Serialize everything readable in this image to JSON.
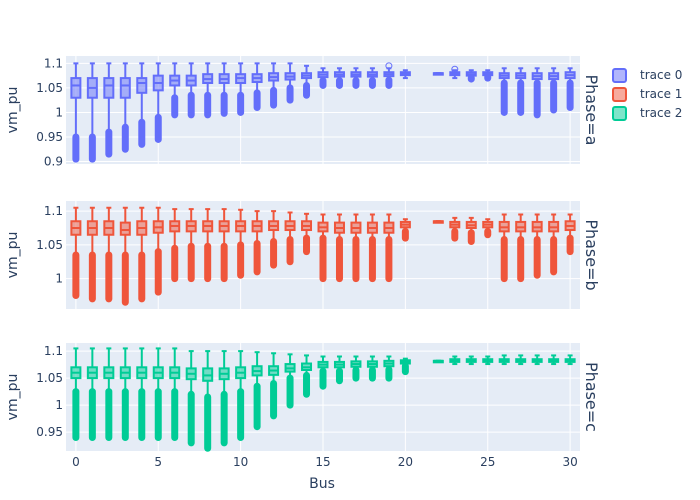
{
  "chart_data": {
    "type": "box",
    "xlabel": "Bus",
    "ylabel": "vm_pu",
    "x_ticks": [
      0,
      5,
      10,
      15,
      20,
      25,
      30
    ],
    "x_tick_labels": [
      "0",
      "5",
      "10",
      "15",
      "20",
      "25",
      "30"
    ],
    "xlim": [
      -0.6,
      30.6
    ],
    "legend": {
      "placement": "right",
      "entries": [
        "trace 0",
        "trace 1",
        "trace 2"
      ]
    },
    "facets": [
      {
        "label": "Phase=a",
        "series": "trace 0",
        "color": "#636efa",
        "ylim": [
          0.895,
          1.115
        ],
        "y_ticks": [
          0.9,
          0.95,
          1.0,
          1.05,
          1.1
        ],
        "y_tick_labels": [
          "0.9",
          "0.95",
          "1",
          "1.05",
          "1.1"
        ],
        "boxes": [
          {
            "x": 0,
            "min": 0.95,
            "q1": 1.03,
            "median": 1.055,
            "q3": 1.07,
            "max": 1.1,
            "out_lo": 0.905
          },
          {
            "x": 1,
            "min": 0.95,
            "q1": 1.03,
            "median": 1.05,
            "q3": 1.07,
            "max": 1.1,
            "out_lo": 0.905
          },
          {
            "x": 2,
            "min": 0.96,
            "q1": 1.03,
            "median": 1.055,
            "q3": 1.07,
            "max": 1.1,
            "out_lo": 0.915
          },
          {
            "x": 3,
            "min": 0.97,
            "q1": 1.03,
            "median": 1.055,
            "q3": 1.07,
            "max": 1.1,
            "out_lo": 0.925
          },
          {
            "x": 4,
            "min": 0.98,
            "q1": 1.04,
            "median": 1.06,
            "q3": 1.07,
            "max": 1.1,
            "out_lo": 0.935
          },
          {
            "x": 5,
            "min": 0.99,
            "q1": 1.045,
            "median": 1.06,
            "q3": 1.075,
            "max": 1.1,
            "out_lo": 0.945
          },
          {
            "x": 6,
            "min": 1.03,
            "q1": 1.055,
            "median": 1.065,
            "q3": 1.075,
            "max": 1.1,
            "out_lo": 0.995
          },
          {
            "x": 7,
            "min": 1.035,
            "q1": 1.055,
            "median": 1.065,
            "q3": 1.075,
            "max": 1.1,
            "out_lo": 0.995
          },
          {
            "x": 8,
            "min": 1.035,
            "q1": 1.06,
            "median": 1.068,
            "q3": 1.078,
            "max": 1.1,
            "out_lo": 0.995
          },
          {
            "x": 9,
            "min": 1.035,
            "q1": 1.06,
            "median": 1.068,
            "q3": 1.078,
            "max": 1.1,
            "out_lo": 0.998
          },
          {
            "x": 10,
            "min": 1.035,
            "q1": 1.06,
            "median": 1.07,
            "q3": 1.078,
            "max": 1.1,
            "out_lo": 1.0
          },
          {
            "x": 11,
            "min": 1.04,
            "q1": 1.062,
            "median": 1.07,
            "q3": 1.078,
            "max": 1.1,
            "out_lo": 1.01
          },
          {
            "x": 12,
            "min": 1.045,
            "q1": 1.065,
            "median": 1.072,
            "q3": 1.08,
            "max": 1.1,
            "out_lo": 1.015
          },
          {
            "x": 13,
            "min": 1.05,
            "q1": 1.067,
            "median": 1.073,
            "q3": 1.08,
            "max": 1.1,
            "out_lo": 1.025
          },
          {
            "x": 14,
            "min": 1.055,
            "q1": 1.07,
            "median": 1.075,
            "q3": 1.08,
            "max": 1.095,
            "out_lo": 1.035
          },
          {
            "x": 15,
            "min": 1.065,
            "q1": 1.072,
            "median": 1.077,
            "q3": 1.082,
            "max": 1.09,
            "out_lo": 1.055
          },
          {
            "x": 16,
            "min": 1.065,
            "q1": 1.073,
            "median": 1.077,
            "q3": 1.082,
            "max": 1.09,
            "out_lo": 1.055
          },
          {
            "x": 17,
            "min": 1.065,
            "q1": 1.073,
            "median": 1.077,
            "q3": 1.082,
            "max": 1.09,
            "out_lo": 1.055
          },
          {
            "x": 18,
            "min": 1.065,
            "q1": 1.073,
            "median": 1.077,
            "q3": 1.082,
            "max": 1.09,
            "out_lo": 1.055
          },
          {
            "x": 19,
            "min": 1.066,
            "q1": 1.074,
            "median": 1.078,
            "q3": 1.082,
            "max": 1.09,
            "out_lo": 1.055,
            "out_hi": 1.095
          },
          {
            "x": 20,
            "min": 1.07,
            "q1": 1.076,
            "median": 1.079,
            "q3": 1.082,
            "max": 1.086,
            "out_lo": 1.07
          },
          {
            "x": 22,
            "min": 1.08,
            "q1": 1.08,
            "median": 1.08,
            "q3": 1.08,
            "max": 1.08
          },
          {
            "x": 23,
            "min": 1.07,
            "q1": 1.076,
            "median": 1.079,
            "q3": 1.082,
            "max": 1.086,
            "out_hi": 1.088
          },
          {
            "x": 24,
            "min": 1.07,
            "q1": 1.075,
            "median": 1.078,
            "q3": 1.082,
            "max": 1.086,
            "out_lo": 1.068
          },
          {
            "x": 25,
            "min": 1.072,
            "q1": 1.076,
            "median": 1.079,
            "q3": 1.082,
            "max": 1.086,
            "out_lo": 1.07
          },
          {
            "x": 26,
            "min": 1.06,
            "q1": 1.07,
            "median": 1.075,
            "q3": 1.08,
            "max": 1.09,
            "out_lo": 1.0
          },
          {
            "x": 27,
            "min": 1.06,
            "q1": 1.07,
            "median": 1.075,
            "q3": 1.08,
            "max": 1.09,
            "out_lo": 1.0
          },
          {
            "x": 28,
            "min": 1.06,
            "q1": 1.068,
            "median": 1.074,
            "q3": 1.08,
            "max": 1.09,
            "out_lo": 0.995
          },
          {
            "x": 29,
            "min": 1.06,
            "q1": 1.068,
            "median": 1.074,
            "q3": 1.08,
            "max": 1.09,
            "out_lo": 1.005
          },
          {
            "x": 30,
            "min": 1.06,
            "q1": 1.07,
            "median": 1.076,
            "q3": 1.082,
            "max": 1.09,
            "out_lo": 1.01
          }
        ]
      },
      {
        "label": "Phase=b",
        "series": "trace 1",
        "color": "#ef553b",
        "ylim": [
          0.955,
          1.115
        ],
        "y_ticks": [
          1.0,
          1.05,
          1.1
        ],
        "y_tick_labels": [
          "1",
          "1.05",
          "1.1"
        ],
        "boxes": [
          {
            "x": 0,
            "min": 1.035,
            "q1": 1.065,
            "median": 1.075,
            "q3": 1.085,
            "max": 1.105,
            "out_lo": 0.975
          },
          {
            "x": 1,
            "min": 1.035,
            "q1": 1.065,
            "median": 1.075,
            "q3": 1.085,
            "max": 1.105,
            "out_lo": 0.97
          },
          {
            "x": 2,
            "min": 1.035,
            "q1": 1.065,
            "median": 1.075,
            "q3": 1.085,
            "max": 1.105,
            "out_lo": 0.97
          },
          {
            "x": 3,
            "min": 1.035,
            "q1": 1.065,
            "median": 1.072,
            "q3": 1.083,
            "max": 1.105,
            "out_lo": 0.965
          },
          {
            "x": 4,
            "min": 1.035,
            "q1": 1.065,
            "median": 1.075,
            "q3": 1.085,
            "max": 1.105,
            "out_lo": 0.97
          },
          {
            "x": 5,
            "min": 1.04,
            "q1": 1.068,
            "median": 1.076,
            "q3": 1.085,
            "max": 1.105,
            "out_lo": 0.98
          },
          {
            "x": 6,
            "min": 1.045,
            "q1": 1.07,
            "median": 1.078,
            "q3": 1.085,
            "max": 1.103,
            "out_lo": 1.0
          },
          {
            "x": 7,
            "min": 1.048,
            "q1": 1.07,
            "median": 1.078,
            "q3": 1.085,
            "max": 1.103,
            "out_lo": 1.0
          },
          {
            "x": 8,
            "min": 1.048,
            "q1": 1.07,
            "median": 1.078,
            "q3": 1.085,
            "max": 1.103,
            "out_lo": 1.0
          },
          {
            "x": 9,
            "min": 1.048,
            "q1": 1.07,
            "median": 1.078,
            "q3": 1.085,
            "max": 1.103,
            "out_lo": 1.0
          },
          {
            "x": 10,
            "min": 1.05,
            "q1": 1.07,
            "median": 1.078,
            "q3": 1.085,
            "max": 1.102,
            "out_lo": 1.005
          },
          {
            "x": 11,
            "min": 1.052,
            "q1": 1.07,
            "median": 1.078,
            "q3": 1.085,
            "max": 1.1,
            "out_lo": 1.01
          },
          {
            "x": 12,
            "min": 1.055,
            "q1": 1.072,
            "median": 1.078,
            "q3": 1.085,
            "max": 1.1,
            "out_lo": 1.02
          },
          {
            "x": 13,
            "min": 1.058,
            "q1": 1.072,
            "median": 1.078,
            "q3": 1.085,
            "max": 1.098,
            "out_lo": 1.025
          },
          {
            "x": 14,
            "min": 1.06,
            "q1": 1.072,
            "median": 1.078,
            "q3": 1.085,
            "max": 1.096,
            "out_lo": 1.04
          },
          {
            "x": 15,
            "min": 1.06,
            "q1": 1.07,
            "median": 1.076,
            "q3": 1.083,
            "max": 1.095,
            "out_lo": 1.0
          },
          {
            "x": 16,
            "min": 1.058,
            "q1": 1.068,
            "median": 1.075,
            "q3": 1.083,
            "max": 1.095,
            "out_lo": 1.0
          },
          {
            "x": 17,
            "min": 1.058,
            "q1": 1.068,
            "median": 1.075,
            "q3": 1.083,
            "max": 1.095,
            "out_lo": 1.0
          },
          {
            "x": 18,
            "min": 1.058,
            "q1": 1.068,
            "median": 1.075,
            "q3": 1.083,
            "max": 1.095,
            "out_lo": 1.0
          },
          {
            "x": 19,
            "min": 1.058,
            "q1": 1.068,
            "median": 1.075,
            "q3": 1.083,
            "max": 1.095,
            "out_lo": 1.0
          },
          {
            "x": 20,
            "min": 1.07,
            "q1": 1.076,
            "median": 1.08,
            "q3": 1.084,
            "max": 1.088,
            "out_lo": 1.06
          },
          {
            "x": 22,
            "min": 1.085,
            "q1": 1.085,
            "median": 1.085,
            "q3": 1.085,
            "max": 1.085
          },
          {
            "x": 23,
            "min": 1.07,
            "q1": 1.076,
            "median": 1.08,
            "q3": 1.084,
            "max": 1.09,
            "out_lo": 1.06
          },
          {
            "x": 24,
            "min": 1.068,
            "q1": 1.075,
            "median": 1.079,
            "q3": 1.084,
            "max": 1.09,
            "out_lo": 1.055
          },
          {
            "x": 25,
            "min": 1.07,
            "q1": 1.076,
            "median": 1.08,
            "q3": 1.084,
            "max": 1.088,
            "out_lo": 1.065
          },
          {
            "x": 26,
            "min": 1.058,
            "q1": 1.07,
            "median": 1.076,
            "q3": 1.084,
            "max": 1.095,
            "out_lo": 1.0
          },
          {
            "x": 27,
            "min": 1.058,
            "q1": 1.07,
            "median": 1.076,
            "q3": 1.084,
            "max": 1.095,
            "out_lo": 1.0
          },
          {
            "x": 28,
            "min": 1.058,
            "q1": 1.07,
            "median": 1.076,
            "q3": 1.084,
            "max": 1.095,
            "out_lo": 1.005
          },
          {
            "x": 29,
            "min": 1.058,
            "q1": 1.07,
            "median": 1.076,
            "q3": 1.084,
            "max": 1.095,
            "out_lo": 1.01
          },
          {
            "x": 30,
            "min": 1.06,
            "q1": 1.072,
            "median": 1.078,
            "q3": 1.085,
            "max": 1.095,
            "out_lo": 1.04
          }
        ]
      },
      {
        "label": "Phase=c",
        "series": "trace 2",
        "color": "#00cc96",
        "ylim": [
          0.915,
          1.115
        ],
        "y_ticks": [
          0.95,
          1.0,
          1.05,
          1.1
        ],
        "y_tick_labels": [
          "0.95",
          "1",
          "1.05",
          "1.1"
        ],
        "boxes": [
          {
            "x": 0,
            "min": 1.025,
            "q1": 1.05,
            "median": 1.06,
            "q3": 1.07,
            "max": 1.105,
            "out_lo": 0.94
          },
          {
            "x": 1,
            "min": 1.025,
            "q1": 1.05,
            "median": 1.06,
            "q3": 1.07,
            "max": 1.105,
            "out_lo": 0.94
          },
          {
            "x": 2,
            "min": 1.025,
            "q1": 1.05,
            "median": 1.06,
            "q3": 1.07,
            "max": 1.105,
            "out_lo": 0.94
          },
          {
            "x": 3,
            "min": 1.025,
            "q1": 1.05,
            "median": 1.06,
            "q3": 1.07,
            "max": 1.105,
            "out_lo": 0.94
          },
          {
            "x": 4,
            "min": 1.025,
            "q1": 1.05,
            "median": 1.06,
            "q3": 1.07,
            "max": 1.105,
            "out_lo": 0.94
          },
          {
            "x": 5,
            "min": 1.025,
            "q1": 1.05,
            "median": 1.06,
            "q3": 1.07,
            "max": 1.105,
            "out_lo": 0.94
          },
          {
            "x": 6,
            "min": 1.025,
            "q1": 1.05,
            "median": 1.06,
            "q3": 1.07,
            "max": 1.105,
            "out_lo": 0.94
          },
          {
            "x": 7,
            "min": 1.02,
            "q1": 1.048,
            "median": 1.058,
            "q3": 1.068,
            "max": 1.1,
            "out_lo": 0.93
          },
          {
            "x": 8,
            "min": 1.015,
            "q1": 1.045,
            "median": 1.055,
            "q3": 1.068,
            "max": 1.1,
            "out_lo": 0.92
          },
          {
            "x": 9,
            "min": 1.02,
            "q1": 1.048,
            "median": 1.058,
            "q3": 1.068,
            "max": 1.1,
            "out_lo": 0.93
          },
          {
            "x": 10,
            "min": 1.025,
            "q1": 1.05,
            "median": 1.06,
            "q3": 1.07,
            "max": 1.1,
            "out_lo": 0.94
          },
          {
            "x": 11,
            "min": 1.035,
            "q1": 1.055,
            "median": 1.063,
            "q3": 1.072,
            "max": 1.098,
            "out_lo": 0.96
          },
          {
            "x": 12,
            "min": 1.04,
            "q1": 1.056,
            "median": 1.064,
            "q3": 1.072,
            "max": 1.096,
            "out_lo": 0.98
          },
          {
            "x": 13,
            "min": 1.05,
            "q1": 1.062,
            "median": 1.068,
            "q3": 1.076,
            "max": 1.094,
            "out_lo": 1.0
          },
          {
            "x": 14,
            "min": 1.055,
            "q1": 1.065,
            "median": 1.07,
            "q3": 1.077,
            "max": 1.092,
            "out_lo": 1.02
          },
          {
            "x": 15,
            "min": 1.063,
            "q1": 1.07,
            "median": 1.075,
            "q3": 1.08,
            "max": 1.09,
            "out_lo": 1.035
          },
          {
            "x": 16,
            "min": 1.063,
            "q1": 1.07,
            "median": 1.075,
            "q3": 1.08,
            "max": 1.09,
            "out_lo": 1.045
          },
          {
            "x": 17,
            "min": 1.065,
            "q1": 1.071,
            "median": 1.076,
            "q3": 1.081,
            "max": 1.09,
            "out_lo": 1.05
          },
          {
            "x": 18,
            "min": 1.065,
            "q1": 1.071,
            "median": 1.076,
            "q3": 1.081,
            "max": 1.09,
            "out_lo": 1.05
          },
          {
            "x": 19,
            "min": 1.066,
            "q1": 1.072,
            "median": 1.077,
            "q3": 1.082,
            "max": 1.09,
            "out_lo": 1.05
          },
          {
            "x": 20,
            "min": 1.072,
            "q1": 1.077,
            "median": 1.08,
            "q3": 1.083,
            "max": 1.086,
            "out_lo": 1.062
          },
          {
            "x": 22,
            "min": 1.082,
            "q1": 1.082,
            "median": 1.082,
            "q3": 1.082,
            "max": 1.082
          },
          {
            "x": 23,
            "min": 1.076,
            "q1": 1.08,
            "median": 1.082,
            "q3": 1.085,
            "max": 1.09
          },
          {
            "x": 24,
            "min": 1.076,
            "q1": 1.08,
            "median": 1.082,
            "q3": 1.085,
            "max": 1.09
          },
          {
            "x": 25,
            "min": 1.076,
            "q1": 1.08,
            "median": 1.082,
            "q3": 1.085,
            "max": 1.09
          },
          {
            "x": 26,
            "min": 1.076,
            "q1": 1.08,
            "median": 1.082,
            "q3": 1.085,
            "max": 1.092
          },
          {
            "x": 27,
            "min": 1.076,
            "q1": 1.08,
            "median": 1.082,
            "q3": 1.085,
            "max": 1.092
          },
          {
            "x": 28,
            "min": 1.076,
            "q1": 1.08,
            "median": 1.082,
            "q3": 1.085,
            "max": 1.092
          },
          {
            "x": 29,
            "min": 1.076,
            "q1": 1.08,
            "median": 1.082,
            "q3": 1.085,
            "max": 1.092
          },
          {
            "x": 30,
            "min": 1.076,
            "q1": 1.08,
            "median": 1.082,
            "q3": 1.085,
            "max": 1.092
          }
        ]
      }
    ]
  }
}
